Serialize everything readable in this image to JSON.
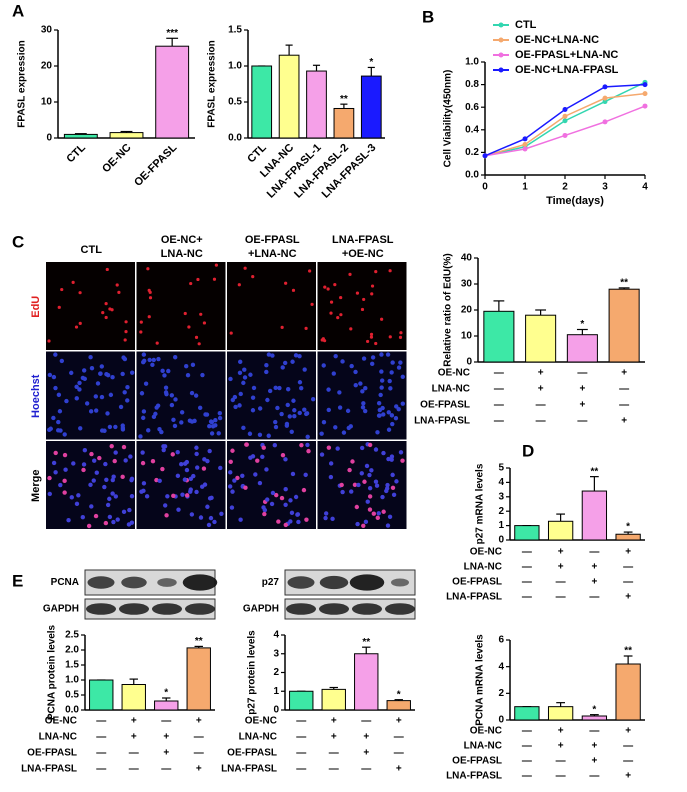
{
  "figure": {
    "panels": [
      "A",
      "B",
      "C",
      "D",
      "E"
    ],
    "image_columns": [
      [
        "CTL"
      ],
      [
        "OE-NC+",
        "LNA-NC"
      ],
      [
        "OE-FPASL",
        "+LNA-NC"
      ],
      [
        "LNA-FPASL",
        "+OE-NC"
      ]
    ],
    "image_rows": [
      "EdU",
      "Hoechst",
      "Merge"
    ],
    "blots": [
      [
        "PCNA",
        "GAPDH"
      ],
      [
        "p27",
        "GAPDH"
      ]
    ]
  },
  "chart_data": [
    {
      "type": "bar",
      "ylabel": "FPASL expression",
      "categories": [
        "CTL",
        "OE-NC",
        "OE-FPASL"
      ],
      "values": [
        1,
        1.5,
        25.5
      ],
      "errors": [
        0.2,
        0.3,
        2.2
      ],
      "colors": [
        "#3de8a6",
        "#ffff8f",
        "#f5a0e8"
      ],
      "stars": [
        null,
        null,
        "***"
      ],
      "ylim": [
        0,
        30
      ],
      "yticks": [
        0,
        10,
        20,
        30
      ]
    },
    {
      "type": "bar",
      "ylabel": "FPASL expression",
      "categories": [
        "CTL",
        "LNA-NC",
        "LNA-FPASL-1",
        "LNA-FPASL-2",
        "LNA-FPASL-3"
      ],
      "values": [
        1.0,
        1.15,
        0.93,
        0.41,
        0.86
      ],
      "errors": [
        0,
        0.14,
        0.08,
        0.06,
        0.12
      ],
      "colors": [
        "#3de8a6",
        "#ffff8f",
        "#f5a0e8",
        "#f5a96e",
        "#1a1aff"
      ],
      "stars": [
        null,
        null,
        null,
        "**",
        "*"
      ],
      "ylim": [
        0,
        1.5
      ],
      "yticks": [
        {
          "value": 0,
          "label": "0.0"
        },
        0.5,
        {
          "value": 1,
          "label": "1.0"
        },
        1.5
      ]
    },
    {
      "type": "line",
      "ylabel": "Cell Viability(450nm)",
      "xlabel": "Time(days)",
      "x": [
        0,
        1,
        2,
        3,
        4
      ],
      "xlim": [
        0,
        4
      ],
      "xticks": [
        0,
        1,
        2,
        3,
        4
      ],
      "ylim": [
        0,
        1
      ],
      "yticks": [
        {
          "value": 0,
          "label": "0.0"
        },
        0.2,
        0.4,
        0.6,
        0.8,
        {
          "value": 1,
          "label": "1.0"
        }
      ],
      "series": [
        {
          "name": "CTL",
          "color": "#33d6b0",
          "values": [
            0.17,
            0.25,
            0.48,
            0.65,
            0.82
          ]
        },
        {
          "name": "OE-NC+LNA-NC",
          "color": "#f5a96e",
          "values": [
            0.17,
            0.27,
            0.52,
            0.68,
            0.72
          ]
        },
        {
          "name": "OE-FPASL+LNA-NC",
          "color": "#f070e0",
          "values": [
            0.17,
            0.23,
            0.35,
            0.47,
            0.61
          ]
        },
        {
          "name": "OE-NC+LNA-FPASL",
          "color": "#1a1aff",
          "values": [
            0.17,
            0.32,
            0.58,
            0.78,
            0.8
          ]
        }
      ]
    },
    {
      "type": "bar",
      "ylabel": "Relative ratio of EdU(%)",
      "values": [
        19.5,
        18,
        10.5,
        28
      ],
      "errors": [
        4,
        2,
        2,
        0.5
      ],
      "colors": [
        "#3de8a6",
        "#ffff8f",
        "#f5a0e8",
        "#f5a96e"
      ],
      "stars": [
        null,
        null,
        "*",
        "**"
      ],
      "ylim": [
        0,
        40
      ],
      "yticks": [
        0,
        10,
        20,
        30,
        40
      ],
      "conditions": [
        {
          "name": "OE-NC",
          "signs": [
            "—",
            "+",
            "—",
            "+"
          ]
        },
        {
          "name": "LNA-NC",
          "signs": [
            "—",
            "+",
            "+",
            "—"
          ]
        },
        {
          "name": "OE-FPASL",
          "signs": [
            "—",
            "—",
            "+",
            "—"
          ]
        },
        {
          "name": "LNA-FPASL",
          "signs": [
            "—",
            "—",
            "—",
            "+"
          ]
        }
      ]
    },
    {
      "type": "bar",
      "ylabel": "p27 mRNA levels",
      "values": [
        1,
        1.3,
        3.4,
        0.4
      ],
      "errors": [
        0,
        0.5,
        1.0,
        0.15
      ],
      "colors": [
        "#3de8a6",
        "#ffff8f",
        "#f5a0e8",
        "#f5a96e"
      ],
      "stars": [
        null,
        null,
        "**",
        "*"
      ],
      "ylim": [
        0,
        5
      ],
      "yticks": [
        0,
        1,
        2,
        3,
        4,
        5
      ],
      "conditions": [
        {
          "name": "OE-NC",
          "signs": [
            "—",
            "+",
            "—",
            "+"
          ]
        },
        {
          "name": "LNA-NC",
          "signs": [
            "—",
            "+",
            "+",
            "—"
          ]
        },
        {
          "name": "OE-FPASL",
          "signs": [
            "—",
            "—",
            "+",
            "—"
          ]
        },
        {
          "name": "LNA-FPASL",
          "signs": [
            "—",
            "—",
            "—",
            "+"
          ]
        }
      ]
    },
    {
      "type": "bar",
      "ylabel": "PCNA mRNA levels",
      "values": [
        1,
        1,
        0.3,
        4.2
      ],
      "errors": [
        0,
        0.3,
        0.1,
        0.6
      ],
      "colors": [
        "#3de8a6",
        "#ffff8f",
        "#f5a0e8",
        "#f5a96e"
      ],
      "stars": [
        null,
        null,
        "*",
        "**"
      ],
      "ylim": [
        0,
        6
      ],
      "yticks": [
        0,
        2,
        4,
        6
      ],
      "conditions": [
        {
          "name": "OE-NC",
          "signs": [
            "—",
            "+",
            "—",
            "+"
          ]
        },
        {
          "name": "LNA-NC",
          "signs": [
            "—",
            "+",
            "+",
            "—"
          ]
        },
        {
          "name": "OE-FPASL",
          "signs": [
            "—",
            "—",
            "+",
            "—"
          ]
        },
        {
          "name": "LNA-FPASL",
          "signs": [
            "—",
            "—",
            "—",
            "+"
          ]
        }
      ]
    },
    {
      "type": "bar",
      "ylabel": "PCNA protein levels",
      "values": [
        1,
        0.85,
        0.3,
        2.07
      ],
      "errors": [
        0,
        0.18,
        0.1,
        0.05
      ],
      "colors": [
        "#3de8a6",
        "#ffff8f",
        "#f5a0e8",
        "#f5a96e"
      ],
      "stars": [
        null,
        null,
        "*",
        "**"
      ],
      "ylim": [
        0,
        2.5
      ],
      "yticks": [
        {
          "value": 0,
          "label": "0.0"
        },
        0.5,
        {
          "value": 1,
          "label": "1.0"
        },
        1.5,
        {
          "value": 2,
          "label": "2.0"
        },
        2.5
      ],
      "conditions": [
        {
          "name": "OE-NC",
          "signs": [
            "—",
            "+",
            "—",
            "+"
          ]
        },
        {
          "name": "LNA-NC",
          "signs": [
            "—",
            "+",
            "+",
            "—"
          ]
        },
        {
          "name": "OE-FPASL",
          "signs": [
            "—",
            "—",
            "+",
            "—"
          ]
        },
        {
          "name": "LNA-FPASL",
          "signs": [
            "—",
            "—",
            "—",
            "+"
          ]
        }
      ]
    },
    {
      "type": "bar",
      "ylabel": "p27 protein levels",
      "values": [
        1,
        1.1,
        3,
        0.5
      ],
      "errors": [
        0,
        0.1,
        0.35,
        0.05
      ],
      "colors": [
        "#3de8a6",
        "#ffff8f",
        "#f5a0e8",
        "#f5a96e"
      ],
      "stars": [
        null,
        null,
        "**",
        "*"
      ],
      "ylim": [
        0,
        4
      ],
      "yticks": [
        0,
        1,
        2,
        3,
        4
      ],
      "conditions": [
        {
          "name": "OE-NC",
          "signs": [
            "—",
            "+",
            "—",
            "+"
          ]
        },
        {
          "name": "LNA-NC",
          "signs": [
            "—",
            "+",
            "+",
            "—"
          ]
        },
        {
          "name": "OE-FPASL",
          "signs": [
            "—",
            "—",
            "+",
            "—"
          ]
        },
        {
          "name": "LNA-FPASL",
          "signs": [
            "—",
            "—",
            "—",
            "+"
          ]
        }
      ]
    }
  ]
}
